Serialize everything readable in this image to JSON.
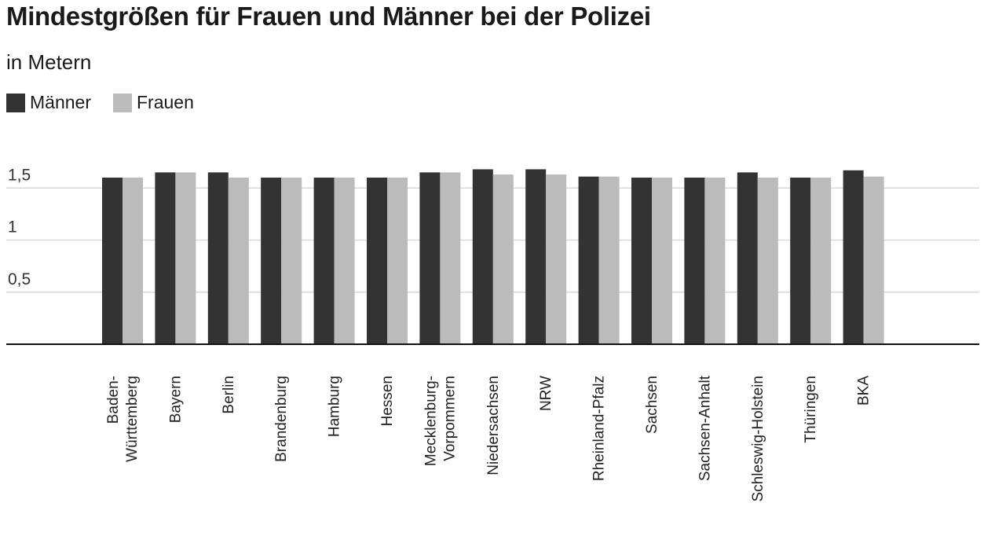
{
  "chart_data": {
    "type": "bar",
    "title": "Mindestgrößen für Frauen und Männer bei der Polizei",
    "subtitle": "in Metern",
    "categories": [
      [
        "Baden-",
        "Württemberg"
      ],
      [
        "Bayern"
      ],
      [
        "Berlin"
      ],
      [
        "Brandenburg"
      ],
      [
        "Hamburg"
      ],
      [
        "Hessen"
      ],
      [
        "Mecklenburg-",
        "Vorpommern"
      ],
      [
        "Niedersachsen"
      ],
      [
        "NRW"
      ],
      [
        "Rheinland-Pfalz"
      ],
      [
        "Sachsen"
      ],
      [
        "Sachsen-Anhalt"
      ],
      [
        "Schleswig-Holstein"
      ],
      [
        "Thüringen"
      ],
      [
        "BKA"
      ]
    ],
    "series": [
      {
        "name": "Männer",
        "color": "#333333",
        "values": [
          1.6,
          1.65,
          1.65,
          1.6,
          1.6,
          1.6,
          1.65,
          1.68,
          1.68,
          1.61,
          1.6,
          1.6,
          1.65,
          1.6,
          1.67
        ]
      },
      {
        "name": "Frauen",
        "color": "#bbbbbb",
        "values": [
          1.6,
          1.65,
          1.6,
          1.6,
          1.6,
          1.6,
          1.65,
          1.63,
          1.63,
          1.61,
          1.6,
          1.6,
          1.6,
          1.6,
          1.61
        ]
      }
    ],
    "yticks": [
      {
        "value": 0.5,
        "label": "0,5"
      },
      {
        "value": 1,
        "label": "1"
      },
      {
        "value": 1.5,
        "label": "1,5"
      }
    ],
    "ylim": [
      0,
      1.75
    ],
    "grid": true,
    "legend": "top-left"
  }
}
